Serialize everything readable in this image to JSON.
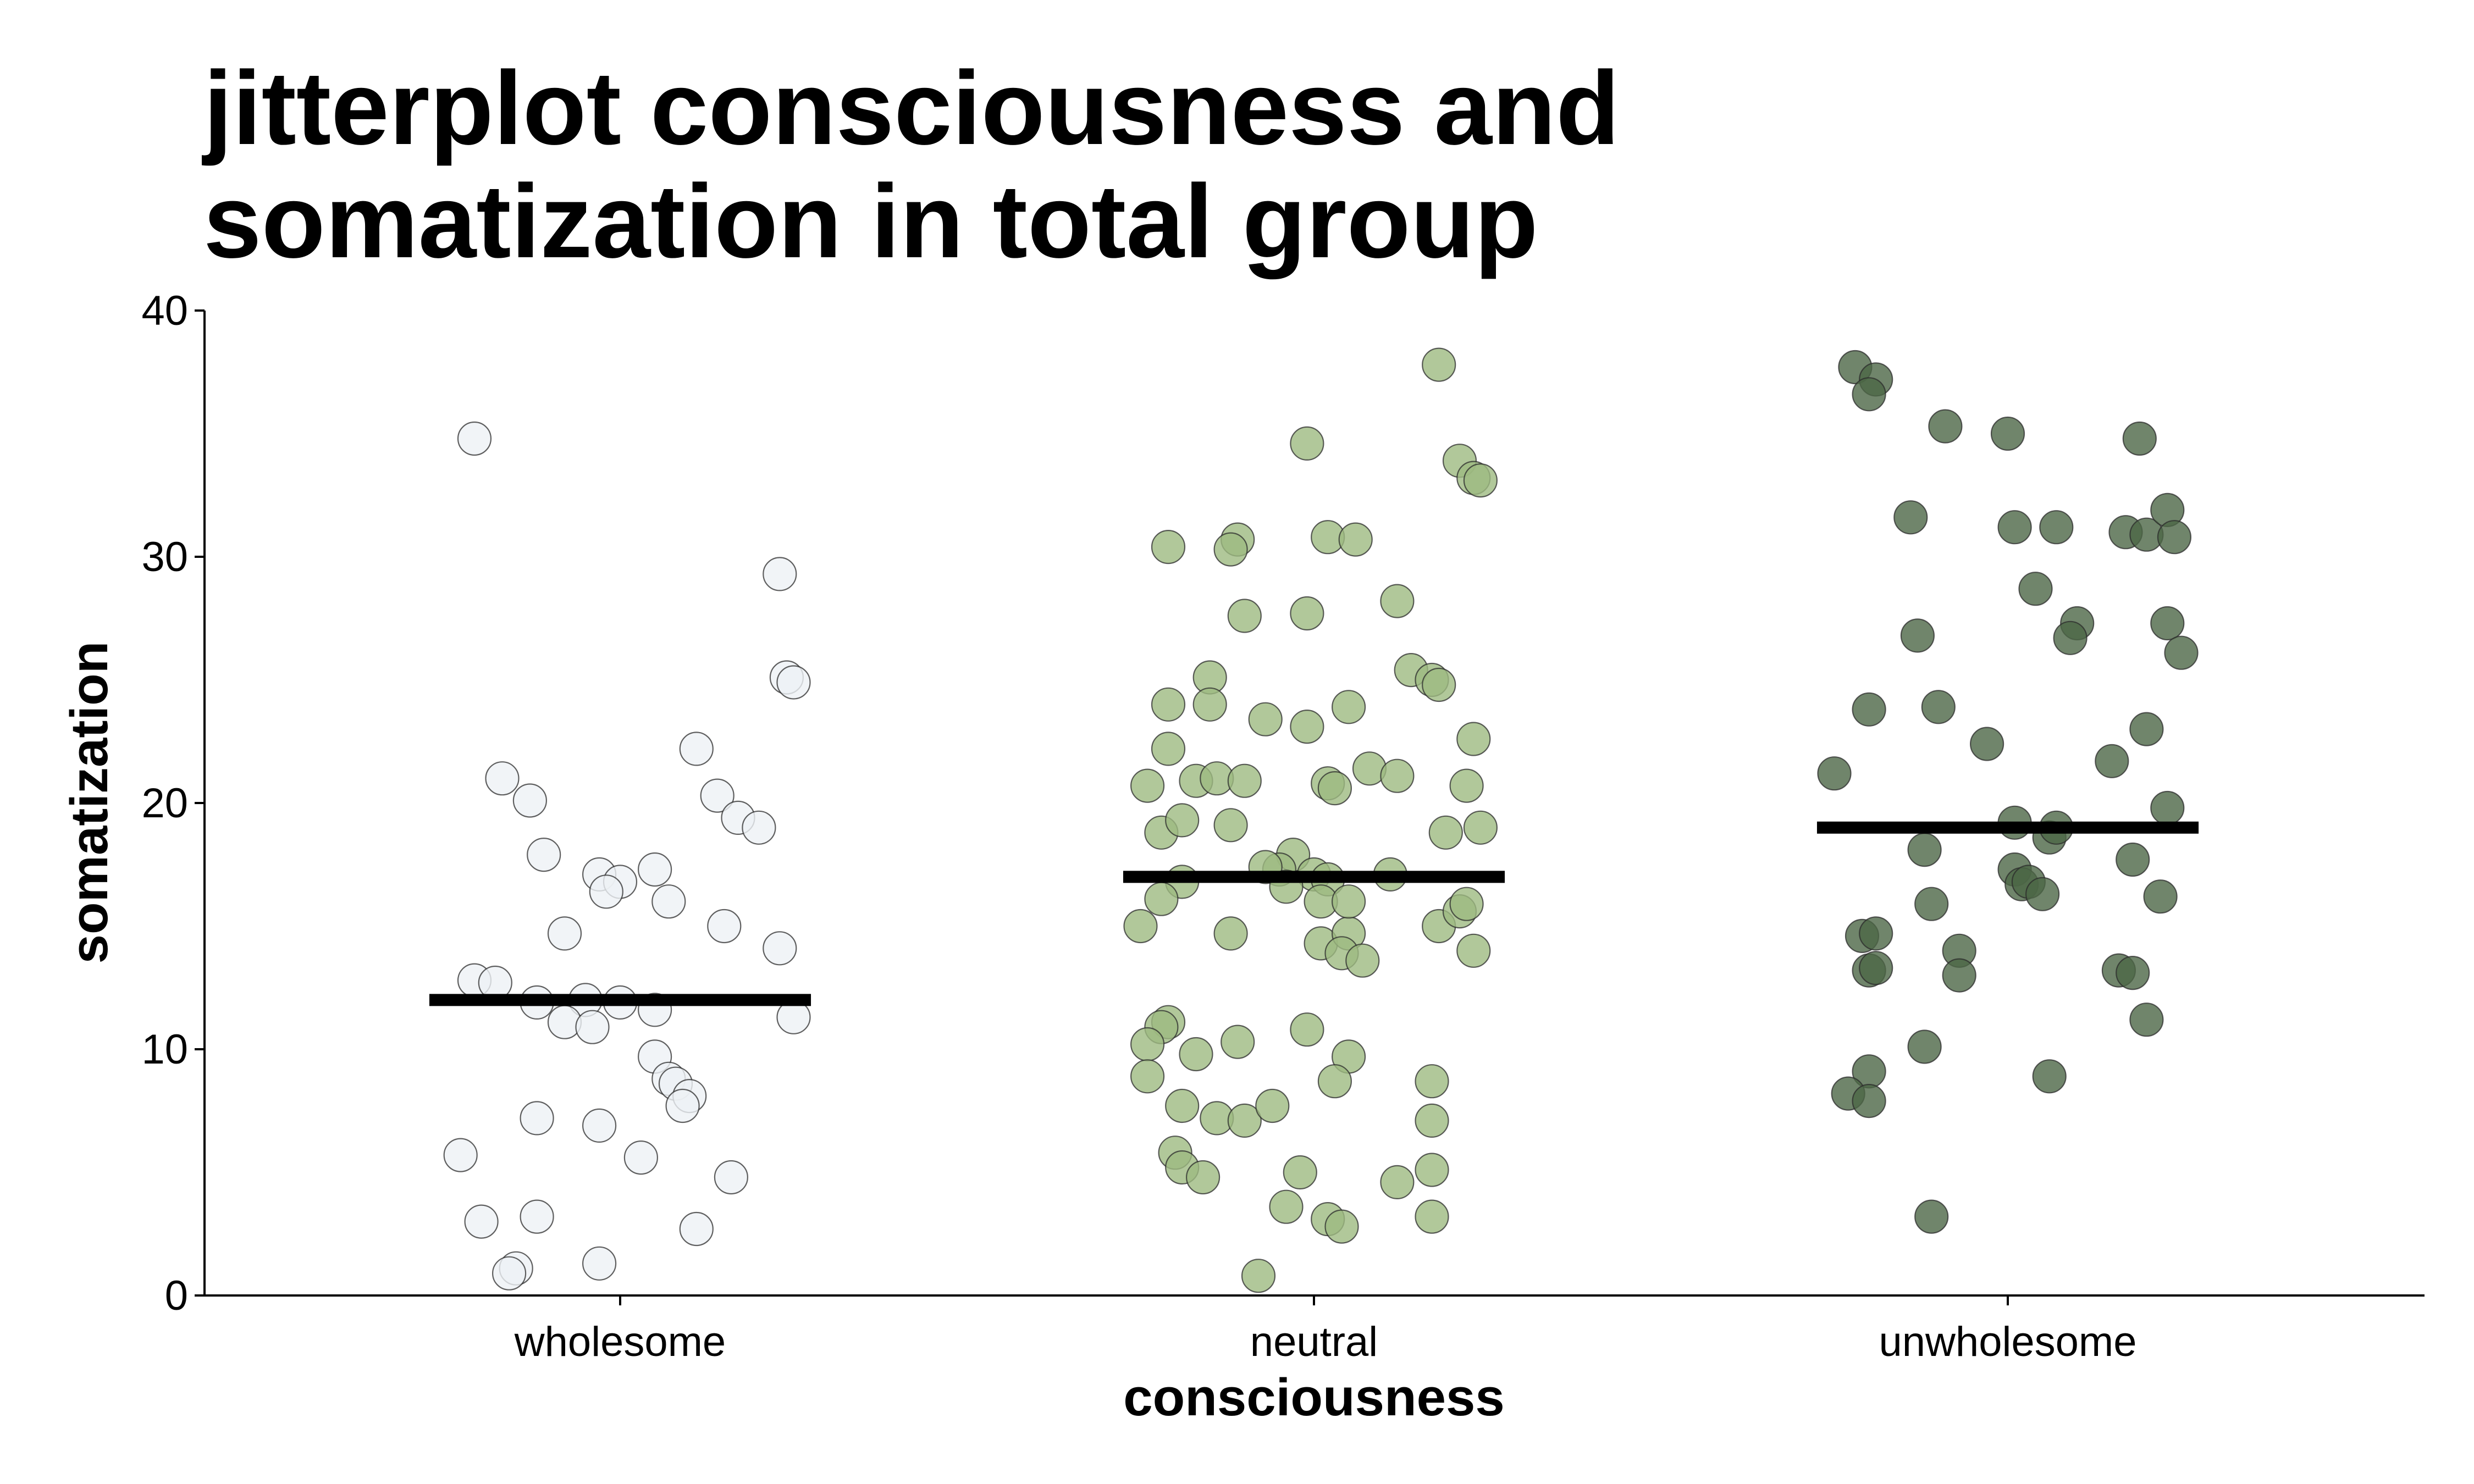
{
  "chart_data": {
    "type": "scatter",
    "title_lines": [
      "jitterplot consciousness and",
      "somatization in total group"
    ],
    "xlabel": "consciousness",
    "ylabel": "somatization",
    "categories": [
      "wholesome",
      "neutral",
      "unwholesome"
    ],
    "ylim": [
      0,
      40
    ],
    "yticks": [
      0,
      10,
      20,
      30,
      40
    ],
    "grid": false,
    "legend": "none",
    "series": [
      {
        "category": "wholesome",
        "color": "#eef1f5",
        "mean": 12,
        "points": [
          [
            -0.21,
            34.8
          ],
          [
            0.23,
            29.3
          ],
          [
            0.24,
            25.1
          ],
          [
            0.25,
            24.9
          ],
          [
            0.11,
            22.2
          ],
          [
            -0.17,
            21.0
          ],
          [
            -0.13,
            20.1
          ],
          [
            0.14,
            20.3
          ],
          [
            0.17,
            19.4
          ],
          [
            0.2,
            19.0
          ],
          [
            -0.11,
            17.9
          ],
          [
            -0.03,
            17.1
          ],
          [
            0.05,
            17.3
          ],
          [
            0.0,
            16.8
          ],
          [
            -0.02,
            16.4
          ],
          [
            0.07,
            16.0
          ],
          [
            0.15,
            15.0
          ],
          [
            -0.08,
            14.7
          ],
          [
            0.23,
            14.1
          ],
          [
            -0.21,
            12.8
          ],
          [
            -0.18,
            12.7
          ],
          [
            -0.12,
            11.9
          ],
          [
            -0.05,
            12.0
          ],
          [
            0.0,
            11.9
          ],
          [
            0.05,
            11.6
          ],
          [
            -0.08,
            11.1
          ],
          [
            -0.04,
            10.9
          ],
          [
            0.25,
            11.3
          ],
          [
            0.05,
            9.7
          ],
          [
            0.07,
            8.8
          ],
          [
            0.08,
            8.6
          ],
          [
            0.1,
            8.1
          ],
          [
            0.09,
            7.7
          ],
          [
            -0.12,
            7.2
          ],
          [
            -0.03,
            6.9
          ],
          [
            -0.23,
            5.7
          ],
          [
            0.03,
            5.6
          ],
          [
            0.16,
            4.8
          ],
          [
            -0.2,
            3.0
          ],
          [
            -0.12,
            3.2
          ],
          [
            0.11,
            2.7
          ],
          [
            -0.03,
            1.3
          ],
          [
            -0.15,
            1.1
          ],
          [
            -0.16,
            0.9
          ]
        ]
      },
      {
        "category": "neutral",
        "color": "#9dba81",
        "mean": 17,
        "points": [
          [
            0.18,
            37.8
          ],
          [
            -0.01,
            34.6
          ],
          [
            0.21,
            33.9
          ],
          [
            0.23,
            33.2
          ],
          [
            0.24,
            33.1
          ],
          [
            -0.21,
            30.4
          ],
          [
            -0.11,
            30.7
          ],
          [
            -0.12,
            30.3
          ],
          [
            0.02,
            30.8
          ],
          [
            0.06,
            30.7
          ],
          [
            -0.1,
            27.6
          ],
          [
            -0.01,
            27.7
          ],
          [
            0.12,
            28.2
          ],
          [
            0.14,
            25.4
          ],
          [
            0.17,
            25.0
          ],
          [
            0.18,
            24.8
          ],
          [
            -0.15,
            25.1
          ],
          [
            -0.21,
            24.0
          ],
          [
            -0.15,
            24.0
          ],
          [
            0.05,
            23.9
          ],
          [
            -0.07,
            23.4
          ],
          [
            -0.01,
            23.1
          ],
          [
            0.23,
            22.6
          ],
          [
            -0.21,
            22.2
          ],
          [
            0.08,
            21.4
          ],
          [
            0.12,
            21.1
          ],
          [
            -0.24,
            20.7
          ],
          [
            -0.17,
            20.9
          ],
          [
            -0.14,
            21.0
          ],
          [
            -0.1,
            20.9
          ],
          [
            0.02,
            20.8
          ],
          [
            0.03,
            20.6
          ],
          [
            0.22,
            20.7
          ],
          [
            -0.22,
            18.8
          ],
          [
            -0.19,
            19.3
          ],
          [
            -0.12,
            19.1
          ],
          [
            -0.03,
            17.9
          ],
          [
            -0.05,
            17.3
          ],
          [
            -0.07,
            17.4
          ],
          [
            0.0,
            17.1
          ],
          [
            0.02,
            16.9
          ],
          [
            -0.04,
            16.6
          ],
          [
            0.01,
            16.0
          ],
          [
            0.11,
            17.1
          ],
          [
            0.19,
            18.8
          ],
          [
            0.24,
            19.0
          ],
          [
            -0.19,
            16.8
          ],
          [
            -0.22,
            16.1
          ],
          [
            -0.25,
            15.0
          ],
          [
            -0.12,
            14.7
          ],
          [
            0.01,
            14.3
          ],
          [
            0.05,
            14.7
          ],
          [
            0.04,
            13.9
          ],
          [
            0.07,
            13.6
          ],
          [
            0.05,
            16.0
          ],
          [
            0.18,
            15.0
          ],
          [
            0.21,
            15.6
          ],
          [
            0.22,
            15.9
          ],
          [
            0.23,
            14.0
          ],
          [
            -0.21,
            11.1
          ],
          [
            -0.22,
            10.9
          ],
          [
            -0.24,
            10.2
          ],
          [
            -0.17,
            9.8
          ],
          [
            -0.11,
            10.3
          ],
          [
            -0.01,
            10.8
          ],
          [
            0.05,
            9.7
          ],
          [
            0.03,
            8.7
          ],
          [
            -0.24,
            8.9
          ],
          [
            -0.19,
            7.7
          ],
          [
            -0.14,
            7.2
          ],
          [
            -0.1,
            7.1
          ],
          [
            -0.06,
            7.7
          ],
          [
            0.17,
            8.7
          ],
          [
            0.17,
            7.1
          ],
          [
            -0.2,
            5.8
          ],
          [
            -0.19,
            5.2
          ],
          [
            -0.16,
            4.8
          ],
          [
            -0.02,
            5.0
          ],
          [
            0.12,
            4.6
          ],
          [
            0.17,
            5.1
          ],
          [
            -0.04,
            3.6
          ],
          [
            0.02,
            3.1
          ],
          [
            0.04,
            2.8
          ],
          [
            0.17,
            3.2
          ],
          [
            -0.08,
            0.8
          ]
        ]
      },
      {
        "category": "unwholesome",
        "color": "#4c6646",
        "mean": 19,
        "points": [
          [
            -0.22,
            37.7
          ],
          [
            -0.19,
            37.2
          ],
          [
            -0.2,
            36.6
          ],
          [
            -0.09,
            35.3
          ],
          [
            0.0,
            35.0
          ],
          [
            0.19,
            34.8
          ],
          [
            -0.14,
            31.6
          ],
          [
            0.01,
            31.2
          ],
          [
            0.07,
            31.2
          ],
          [
            0.17,
            31.0
          ],
          [
            0.2,
            30.9
          ],
          [
            0.23,
            31.9
          ],
          [
            0.24,
            30.8
          ],
          [
            0.04,
            28.7
          ],
          [
            0.1,
            27.3
          ],
          [
            0.09,
            26.7
          ],
          [
            0.23,
            27.3
          ],
          [
            0.25,
            26.1
          ],
          [
            -0.13,
            26.8
          ],
          [
            -0.2,
            23.8
          ],
          [
            -0.1,
            23.9
          ],
          [
            -0.03,
            22.4
          ],
          [
            0.2,
            23.0
          ],
          [
            0.15,
            21.7
          ],
          [
            -0.25,
            21.2
          ],
          [
            0.23,
            19.8
          ],
          [
            0.01,
            19.2
          ],
          [
            0.06,
            18.6
          ],
          [
            0.07,
            19.0
          ],
          [
            -0.12,
            18.1
          ],
          [
            0.01,
            17.3
          ],
          [
            0.02,
            16.7
          ],
          [
            0.03,
            16.8
          ],
          [
            0.05,
            16.3
          ],
          [
            0.18,
            17.7
          ],
          [
            0.22,
            16.2
          ],
          [
            -0.11,
            15.9
          ],
          [
            -0.07,
            14.0
          ],
          [
            -0.07,
            13.0
          ],
          [
            -0.21,
            14.6
          ],
          [
            -0.19,
            14.7
          ],
          [
            -0.2,
            13.2
          ],
          [
            -0.19,
            13.3
          ],
          [
            0.16,
            13.2
          ],
          [
            0.18,
            13.1
          ],
          [
            0.2,
            11.2
          ],
          [
            -0.12,
            10.1
          ],
          [
            -0.2,
            9.1
          ],
          [
            -0.23,
            8.2
          ],
          [
            -0.2,
            7.9
          ],
          [
            0.06,
            8.9
          ],
          [
            -0.11,
            3.2
          ]
        ]
      }
    ]
  }
}
